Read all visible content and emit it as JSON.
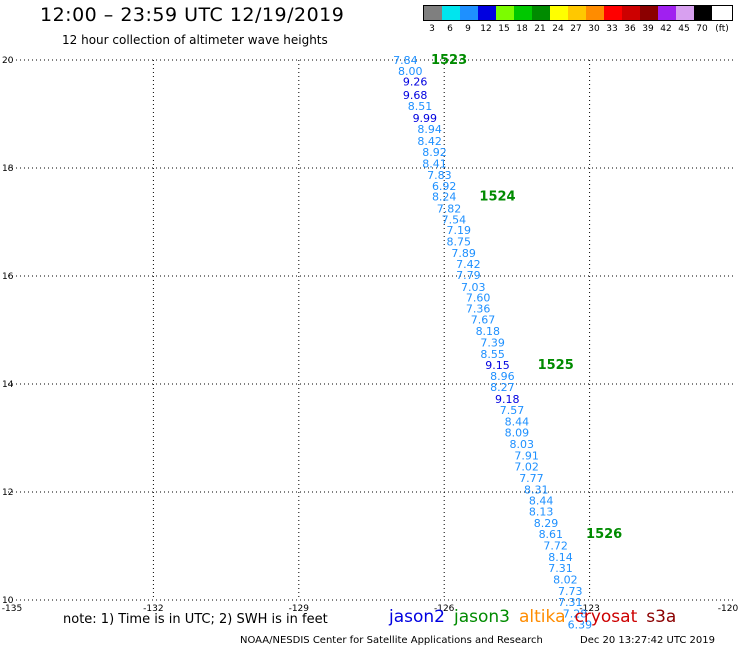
{
  "header": {
    "title": "12:00 – 23:59 UTC 12/19/2019",
    "subtitle": "12 hour collection of altimeter wave heights"
  },
  "colorbar": {
    "unit": "(ft)",
    "entries": [
      {
        "label": "3",
        "color": "#7f7f7f"
      },
      {
        "label": "6",
        "color": "#00e5ee"
      },
      {
        "label": "9",
        "color": "#1e90ff"
      },
      {
        "label": "12",
        "color": "#0000e0"
      },
      {
        "label": "15",
        "color": "#7cfc00"
      },
      {
        "label": "18",
        "color": "#00c800"
      },
      {
        "label": "21",
        "color": "#008b00"
      },
      {
        "label": "24",
        "color": "#ffff00"
      },
      {
        "label": "27",
        "color": "#ffc800"
      },
      {
        "label": "30",
        "color": "#ff8c00"
      },
      {
        "label": "33",
        "color": "#ff0000"
      },
      {
        "label": "36",
        "color": "#cd0000"
      },
      {
        "label": "39",
        "color": "#8b0000"
      },
      {
        "label": "42",
        "color": "#a020f0"
      },
      {
        "label": "45",
        "color": "#d8a0f0"
      },
      {
        "label": "70",
        "color": "#000000"
      }
    ]
  },
  "chart_data": {
    "type": "scatter",
    "xlim": [
      -135,
      -120
    ],
    "ylim": [
      10,
      20
    ],
    "x_ticks": [
      "-135",
      "-132",
      "-129",
      "-126",
      "-123",
      "-120"
    ],
    "y_ticks": [
      "10",
      "12",
      "14",
      "16",
      "18",
      "20"
    ],
    "grid": true,
    "points": [
      {
        "lon": -126.8,
        "lat": 20.0,
        "value": "7.84",
        "color": "#1e90ff"
      },
      {
        "lon": -126.7,
        "lat": 19.8,
        "value": "8.00",
        "color": "#1e90ff"
      },
      {
        "lon": -126.6,
        "lat": 19.6,
        "value": "9.26",
        "color": "#0000e0"
      },
      {
        "lon": -126.6,
        "lat": 19.35,
        "value": "9.68",
        "color": "#0000e0"
      },
      {
        "lon": -126.5,
        "lat": 19.15,
        "value": "8.51",
        "color": "#1e90ff"
      },
      {
        "lon": -126.4,
        "lat": 18.93,
        "value": "9.99",
        "color": "#0000e0"
      },
      {
        "lon": -126.3,
        "lat": 18.72,
        "value": "8.94",
        "color": "#1e90ff"
      },
      {
        "lon": -126.3,
        "lat": 18.5,
        "value": "8.42",
        "color": "#1e90ff"
      },
      {
        "lon": -126.2,
        "lat": 18.3,
        "value": "8.92",
        "color": "#1e90ff"
      },
      {
        "lon": -126.2,
        "lat": 18.08,
        "value": "8.41",
        "color": "#1e90ff"
      },
      {
        "lon": -126.1,
        "lat": 17.87,
        "value": "7.83",
        "color": "#1e90ff"
      },
      {
        "lon": -126.0,
        "lat": 17.67,
        "value": "6.92",
        "color": "#1e90ff"
      },
      {
        "lon": -126.0,
        "lat": 17.47,
        "value": "8.24",
        "color": "#1e90ff"
      },
      {
        "lon": -125.9,
        "lat": 17.25,
        "value": "7.82",
        "color": "#1e90ff"
      },
      {
        "lon": -125.8,
        "lat": 17.05,
        "value": "7.54",
        "color": "#1e90ff"
      },
      {
        "lon": -125.7,
        "lat": 16.85,
        "value": "7.19",
        "color": "#1e90ff"
      },
      {
        "lon": -125.7,
        "lat": 16.64,
        "value": "8.75",
        "color": "#1e90ff"
      },
      {
        "lon": -125.6,
        "lat": 16.43,
        "value": "7.89",
        "color": "#1e90ff"
      },
      {
        "lon": -125.5,
        "lat": 16.22,
        "value": "7.42",
        "color": "#1e90ff"
      },
      {
        "lon": -125.5,
        "lat": 16.02,
        "value": "7.79",
        "color": "#1e90ff"
      },
      {
        "lon": -125.4,
        "lat": 15.8,
        "value": "7.03",
        "color": "#1e90ff"
      },
      {
        "lon": -125.3,
        "lat": 15.6,
        "value": "7.60",
        "color": "#1e90ff"
      },
      {
        "lon": -125.3,
        "lat": 15.4,
        "value": "7.36",
        "color": "#1e90ff"
      },
      {
        "lon": -125.2,
        "lat": 15.19,
        "value": "7.67",
        "color": "#1e90ff"
      },
      {
        "lon": -125.1,
        "lat": 14.98,
        "value": "8.18",
        "color": "#1e90ff"
      },
      {
        "lon": -125.0,
        "lat": 14.77,
        "value": "7.39",
        "color": "#1e90ff"
      },
      {
        "lon": -125.0,
        "lat": 14.56,
        "value": "8.55",
        "color": "#1e90ff"
      },
      {
        "lon": -124.9,
        "lat": 14.35,
        "value": "9.15",
        "color": "#0000e0"
      },
      {
        "lon": -124.8,
        "lat": 14.15,
        "value": "8.96",
        "color": "#1e90ff"
      },
      {
        "lon": -124.8,
        "lat": 13.94,
        "value": "8.27",
        "color": "#1e90ff"
      },
      {
        "lon": -124.7,
        "lat": 13.72,
        "value": "9.18",
        "color": "#0000e0"
      },
      {
        "lon": -124.6,
        "lat": 13.52,
        "value": "7.57",
        "color": "#1e90ff"
      },
      {
        "lon": -124.5,
        "lat": 13.31,
        "value": "8.44",
        "color": "#1e90ff"
      },
      {
        "lon": -124.5,
        "lat": 13.1,
        "value": "8.09",
        "color": "#1e90ff"
      },
      {
        "lon": -124.4,
        "lat": 12.89,
        "value": "8.03",
        "color": "#1e90ff"
      },
      {
        "lon": -124.3,
        "lat": 12.68,
        "value": "7.91",
        "color": "#1e90ff"
      },
      {
        "lon": -124.3,
        "lat": 12.47,
        "value": "7.02",
        "color": "#1e90ff"
      },
      {
        "lon": -124.2,
        "lat": 12.26,
        "value": "7.77",
        "color": "#1e90ff"
      },
      {
        "lon": -124.1,
        "lat": 12.05,
        "value": "8.31",
        "color": "#1e90ff"
      },
      {
        "lon": -124.0,
        "lat": 11.84,
        "value": "8.44",
        "color": "#1e90ff"
      },
      {
        "lon": -124.0,
        "lat": 11.64,
        "value": "8.13",
        "color": "#1e90ff"
      },
      {
        "lon": -123.9,
        "lat": 11.43,
        "value": "8.29",
        "color": "#1e90ff"
      },
      {
        "lon": -123.8,
        "lat": 11.22,
        "value": "8.61",
        "color": "#1e90ff"
      },
      {
        "lon": -123.7,
        "lat": 11.01,
        "value": "7.72",
        "color": "#1e90ff"
      },
      {
        "lon": -123.6,
        "lat": 10.8,
        "value": "8.14",
        "color": "#1e90ff"
      },
      {
        "lon": -123.6,
        "lat": 10.59,
        "value": "7.31",
        "color": "#1e90ff"
      },
      {
        "lon": -123.5,
        "lat": 10.38,
        "value": "8.02",
        "color": "#1e90ff"
      },
      {
        "lon": -123.4,
        "lat": 10.17,
        "value": "7.73",
        "color": "#1e90ff"
      },
      {
        "lon": -123.4,
        "lat": 9.96,
        "value": "7.31",
        "color": "#1e90ff"
      },
      {
        "lon": -123.3,
        "lat": 9.75,
        "value": "7.28",
        "color": "#1e90ff"
      },
      {
        "lon": -123.2,
        "lat": 9.55,
        "value": "6.39",
        "color": "#1e90ff"
      }
    ],
    "annotations": [
      {
        "text": "1523",
        "lon": -125.9,
        "lat": 20.0,
        "color": "#008b00"
      },
      {
        "text": "1524",
        "lon": -124.9,
        "lat": 17.47,
        "color": "#008b00"
      },
      {
        "text": "1525",
        "lon": -123.7,
        "lat": 14.35,
        "color": "#008b00"
      },
      {
        "text": "1526",
        "lon": -122.7,
        "lat": 11.22,
        "color": "#008b00"
      }
    ]
  },
  "footer": {
    "note": "note: 1) Time is in UTC; 2) SWH is in feet",
    "satellites": [
      {
        "label": "jason2",
        "color": "#0000e0"
      },
      {
        "label": "jason3",
        "color": "#008b00"
      },
      {
        "label": "altika",
        "color": "#ff8c00"
      },
      {
        "label": "cryosat",
        "color": "#cd0000"
      },
      {
        "label": "s3a",
        "color": "#8b0000"
      }
    ],
    "credit": "NOAA/NESDIS Center for Satellite Applications and Research",
    "timestamp": "Dec 20 13:27:42 UTC 2019"
  }
}
